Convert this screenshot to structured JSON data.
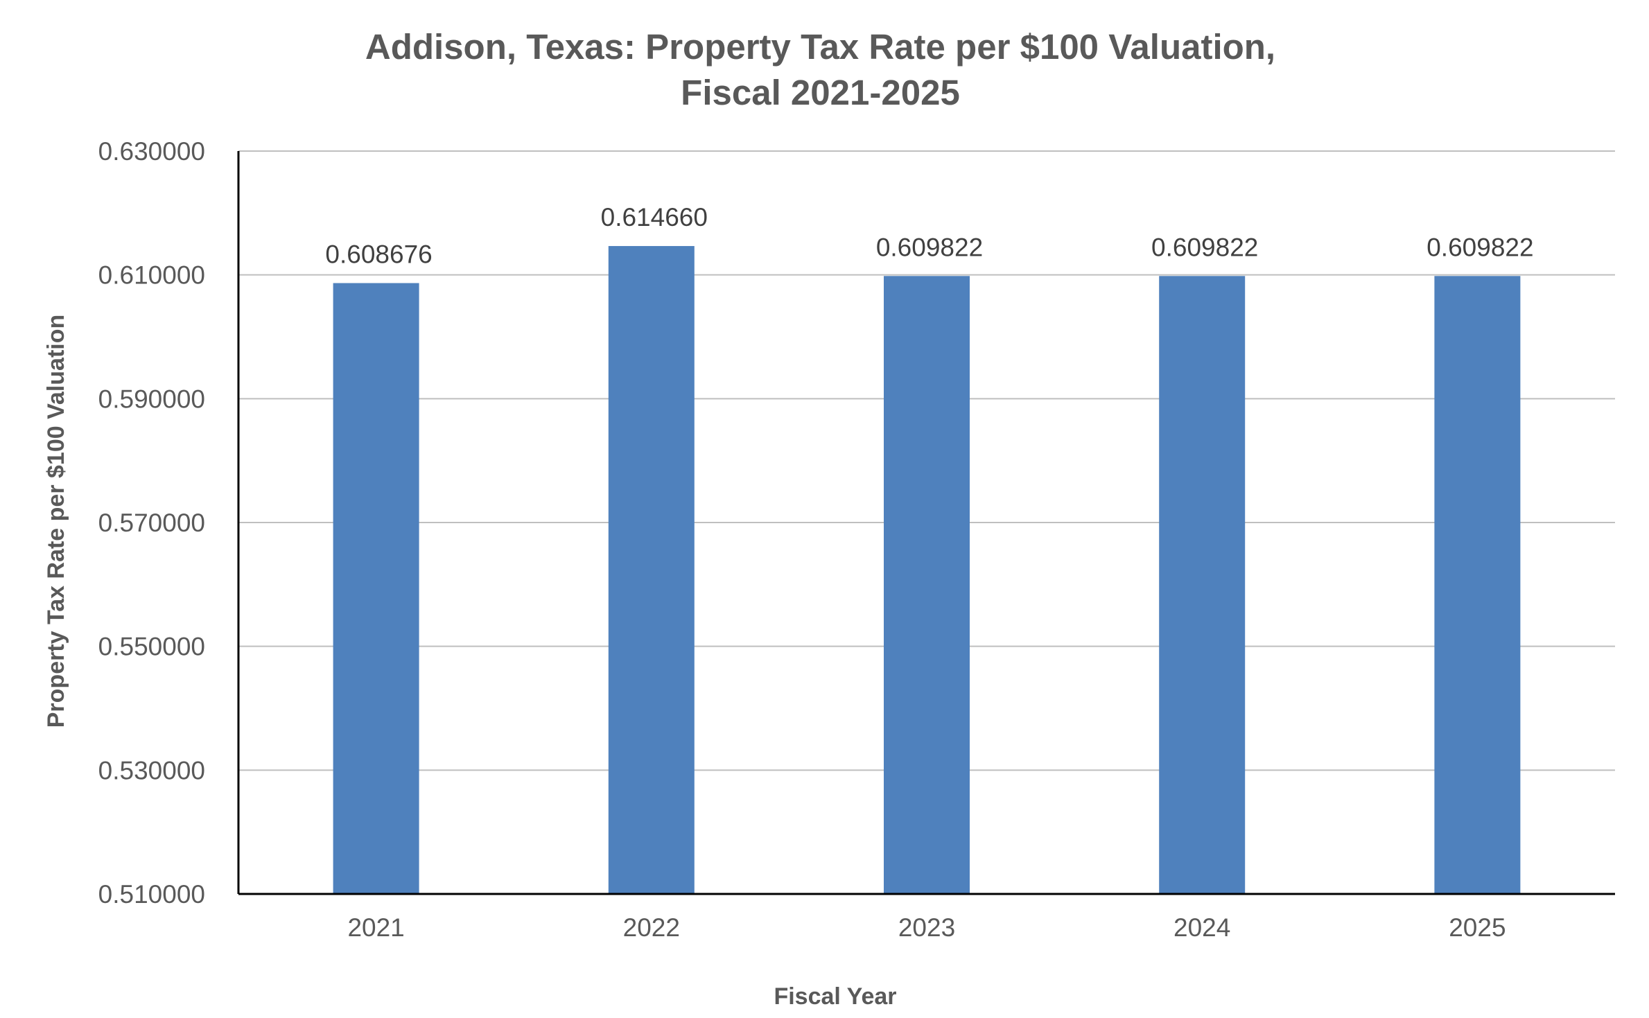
{
  "chart_data": {
    "type": "bar",
    "title": "Addison, Texas:  Property Tax Rate per $100 Valuation,",
    "subtitle": "Fiscal 2021-2025",
    "xlabel": "Fiscal Year",
    "ylabel": "Property Tax Rate per $100 Valuation",
    "categories": [
      "2021",
      "2022",
      "2023",
      "2024",
      "2025"
    ],
    "values": [
      0.608676,
      0.61466,
      0.609822,
      0.609822,
      0.609822
    ],
    "value_labels": [
      "0.608676",
      "0.614660",
      "0.609822",
      "0.609822",
      "0.609822"
    ],
    "ylim": [
      0.51,
      0.63
    ],
    "yticks": [
      0.51,
      0.53,
      0.55,
      0.57,
      0.59,
      0.61,
      0.63
    ],
    "ytick_labels": [
      "0.510000",
      "0.530000",
      "0.550000",
      "0.570000",
      "0.590000",
      "0.610000",
      "0.630000"
    ],
    "grid": true,
    "legend": "none",
    "colors": {
      "bar": "#4F81BD",
      "grid": "#BFBFBF",
      "axis": "#000000",
      "text": "#595959"
    }
  }
}
